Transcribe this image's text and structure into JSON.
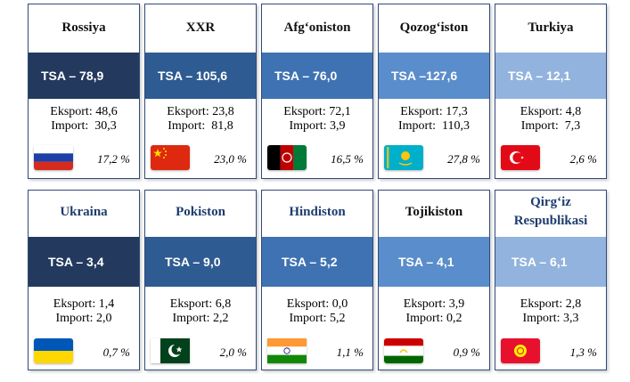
{
  "cards": [
    {
      "country": "Rossiya",
      "tsa": "TSA – 78,9",
      "export": "Eksport: 48,6",
      "import": "Import:  30,3",
      "share": "17,2 %",
      "flag_icon": "russia-flag-icon"
    },
    {
      "country": "XXR",
      "tsa": "TSA – 105,6",
      "export": "Eksport: 23,8",
      "import": "Import:  81,8",
      "share": "23,0 %",
      "flag_icon": "china-flag-icon"
    },
    {
      "country": "Afg‘oniston",
      "tsa": "TSA – 76,0",
      "export": "Eksport: 72,1",
      "import": "Import: 3,9",
      "share": "16,5 %",
      "flag_icon": "afghanistan-flag-icon"
    },
    {
      "country": "Qozog‘iston",
      "tsa": "TSA –127,6",
      "export": "Eksport: 17,3",
      "import": "Import:  110,3",
      "share": "27,8 %",
      "flag_icon": "kazakhstan-flag-icon"
    },
    {
      "country": "Turkiya",
      "tsa": "TSA – 12,1",
      "export": "Eksport: 4,8",
      "import": "Import:  7,3",
      "share": "2,6 %",
      "flag_icon": "turkey-flag-icon"
    },
    {
      "country": "Ukraina",
      "tsa": "TSA – 3,4",
      "export": "Eksport: 1,4",
      "import": "Import: 2,0",
      "share": "0,7 %",
      "flag_icon": "ukraine-flag-icon"
    },
    {
      "country": "Pokiston",
      "tsa": "TSA – 9,0",
      "export": "Eksport: 6,8",
      "import": "Import: 2,2",
      "share": "2,0 %",
      "flag_icon": "pakistan-flag-icon"
    },
    {
      "country": "Hindiston",
      "tsa": "TSA – 5,2",
      "export": "Eksport: 0,0",
      "import": "Import: 5,2",
      "share": "1,1 %",
      "flag_icon": "india-flag-icon"
    },
    {
      "country": "Tojikiston",
      "tsa": "TSA – 4,1",
      "export": "Eksport: 3,9",
      "import": "Import: 0,2",
      "share": "0,9 %",
      "flag_icon": "tajikistan-flag-icon"
    },
    {
      "country": "Qirg‘iz Respublikasi",
      "tsa": "TSA – 6,1",
      "export": "Eksport: 2,8",
      "import": "Import: 3,3",
      "share": "1,3 %",
      "flag_icon": "kyrgyzstan-flag-icon"
    }
  ],
  "colors": {
    "band_1": "#233a5e",
    "band_2": "#2f5b93",
    "band_3": "#3f72b3",
    "band_4": "#5a8dcb",
    "band_5": "#92b3dd",
    "border": "#2f4a78"
  }
}
